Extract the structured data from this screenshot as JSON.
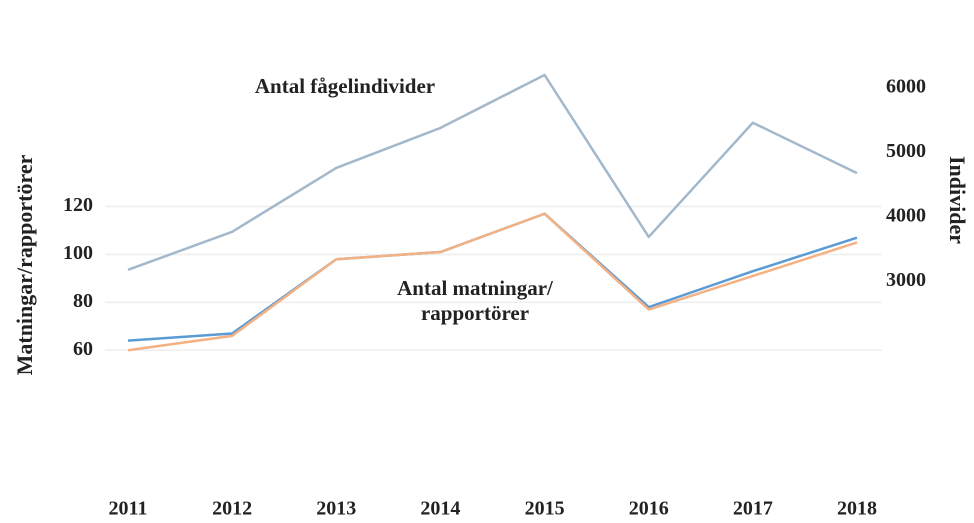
{
  "chart_data": {
    "type": "line",
    "annotations": [
      "Antal fågelindivider",
      [
        "Antal matningar/",
        "rapportörer"
      ]
    ],
    "ylabel": "Matningar/rapportörer",
    "y2label": "Individer",
    "categories": [
      "2011",
      "2012",
      "2013",
      "2014",
      "2015",
      "2016",
      "2017",
      "2018"
    ],
    "series": [
      {
        "color": "#a3b9cb",
        "axis": "y2",
        "values": [
          3180,
          3770,
          4760,
          5380,
          6200,
          3690,
          5460,
          4680
        ]
      },
      {
        "color": "#5b9bd5",
        "values": [
          64,
          67,
          98,
          101,
          117,
          78,
          93,
          107
        ]
      },
      {
        "color": "#f4b183",
        "values": [
          60,
          66,
          98,
          101,
          117,
          77,
          91,
          105
        ]
      }
    ],
    "ylim": [
      20,
      200
    ],
    "yticks": [
      60,
      80,
      100,
      120
    ],
    "y2lim": [
      450,
      7130
    ],
    "y2ticks": [
      3000,
      4000,
      5000,
      6000
    ],
    "grid": true
  }
}
